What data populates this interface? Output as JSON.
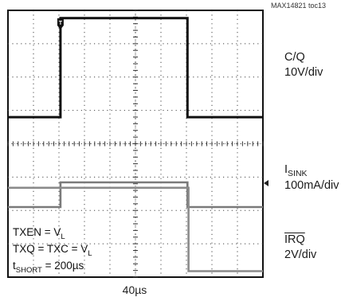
{
  "document_id": "MAX14821 toc13",
  "channels": [
    {
      "id": "ch1",
      "name": "C/Q",
      "scale": "10V/div",
      "color": "#111111"
    },
    {
      "id": "ch2",
      "name_main": "I",
      "name_sub": "SINK",
      "scale": "100mA/div",
      "color": "#777777"
    },
    {
      "id": "ch3",
      "name": "IRQ",
      "overbar": true,
      "scale": "2V/div",
      "color": "#888888"
    }
  ],
  "conditions": [
    {
      "main": "TXEN = V",
      "sub": "L",
      "tail": ""
    },
    {
      "main": "TXQ = TXC = V",
      "sub": "L",
      "tail": ""
    },
    {
      "main": "t",
      "sub": "SHORT",
      "tail": " = 200µs"
    }
  ],
  "timebase": "40µs",
  "trigger_marker": "T",
  "chart_data": {
    "type": "line",
    "title": "",
    "xlabel": "40µs",
    "x_unit": "div",
    "xlim": [
      0,
      10
    ],
    "grid": true,
    "divisions": {
      "x": 10,
      "y": 8
    },
    "series": [
      {
        "name": "C/Q",
        "scale": "10V/div",
        "y_unit": "div",
        "x": [
          0,
          2.06,
          2.06,
          7.04,
          7.04,
          10
        ],
        "y": [
          -0.05,
          -0.05,
          2.92,
          2.92,
          -0.05,
          -0.05
        ]
      },
      {
        "name": "I_SINK",
        "scale": "100mA/div",
        "y_unit": "div",
        "x": [
          0,
          2.06,
          2.06,
          7.04,
          7.04,
          10
        ],
        "y": [
          0,
          0,
          0.74,
          0.74,
          0,
          0
        ]
      },
      {
        "name": "IRQ",
        "scale": "2V/div",
        "y_unit": "div",
        "x": [
          0,
          7.08,
          7.08,
          10
        ],
        "y": [
          2.56,
          2.56,
          0.06,
          0.06
        ]
      }
    ]
  }
}
